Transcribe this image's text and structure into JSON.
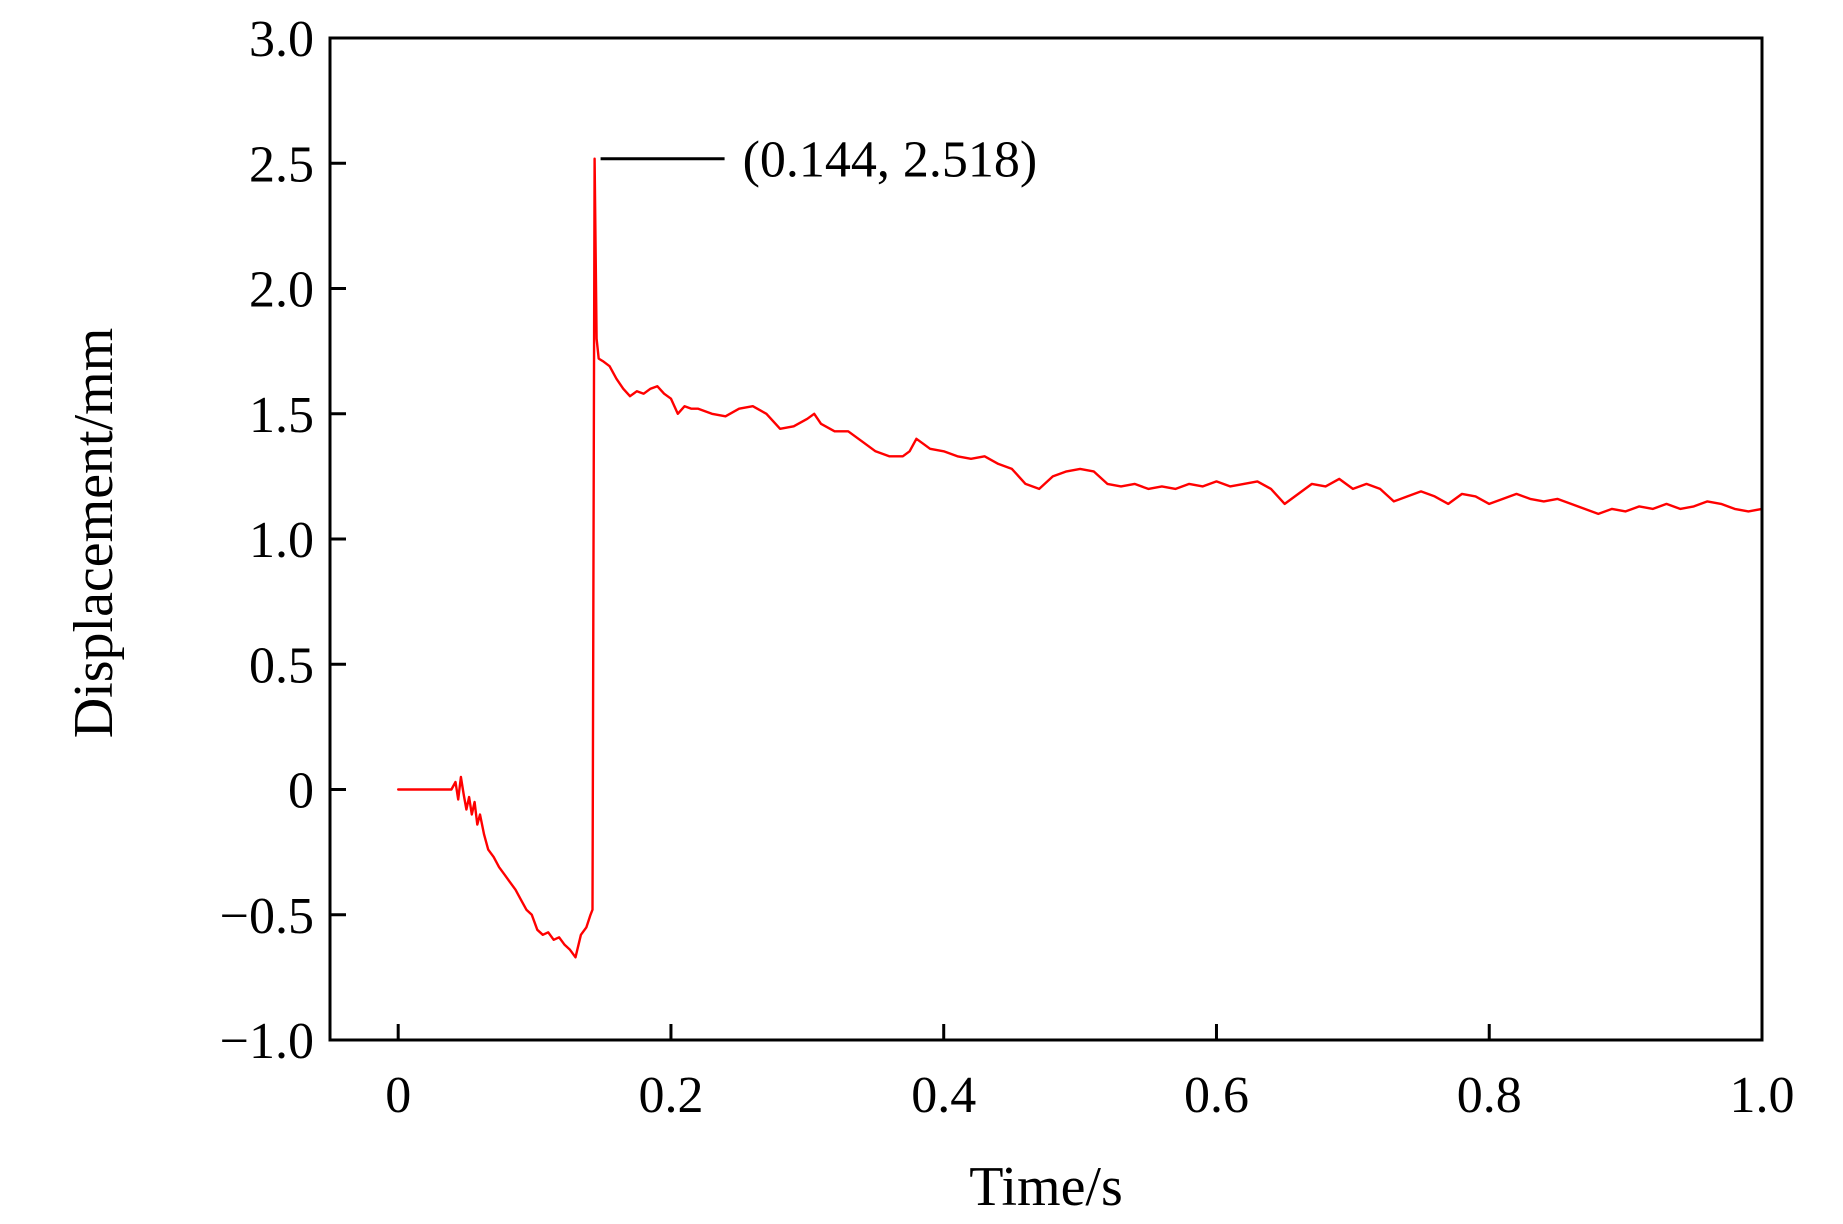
{
  "chart_data": {
    "type": "line",
    "xlabel": "Time/s",
    "ylabel": "Displacement/mm",
    "xlim": [
      -0.05,
      1.0
    ],
    "ylim": [
      -1.0,
      3.0
    ],
    "x_ticks": [
      0,
      0.2,
      0.4,
      0.6,
      0.8,
      1.0
    ],
    "x_tick_labels": [
      "0",
      "0.2",
      "0.4",
      "0.6",
      "0.8",
      "1.0"
    ],
    "y_ticks": [
      -1.0,
      -0.5,
      0,
      0.5,
      1.0,
      1.5,
      2.0,
      2.5,
      3.0
    ],
    "y_tick_labels": [
      "−1.0",
      "−0.5",
      "0",
      "0.5",
      "1.0",
      "1.5",
      "2.0",
      "2.5",
      "3.0"
    ],
    "grid": false,
    "series": [
      {
        "color": "#ff0000",
        "x": [
          0,
          0.01,
          0.02,
          0.03,
          0.039,
          0.042,
          0.044,
          0.046,
          0.048,
          0.05,
          0.052,
          0.054,
          0.056,
          0.058,
          0.06,
          0.063,
          0.066,
          0.07,
          0.074,
          0.078,
          0.082,
          0.086,
          0.09,
          0.094,
          0.098,
          0.102,
          0.106,
          0.11,
          0.114,
          0.118,
          0.122,
          0.126,
          0.13,
          0.134,
          0.138,
          0.141,
          0.1425,
          0.144,
          0.1455,
          0.147,
          0.15,
          0.155,
          0.16,
          0.165,
          0.17,
          0.175,
          0.18,
          0.185,
          0.19,
          0.195,
          0.2,
          0.205,
          0.21,
          0.215,
          0.22,
          0.23,
          0.24,
          0.25,
          0.26,
          0.27,
          0.28,
          0.29,
          0.3,
          0.305,
          0.31,
          0.32,
          0.33,
          0.34,
          0.35,
          0.36,
          0.37,
          0.375,
          0.38,
          0.385,
          0.39,
          0.4,
          0.41,
          0.42,
          0.43,
          0.44,
          0.45,
          0.46,
          0.47,
          0.48,
          0.49,
          0.5,
          0.51,
          0.52,
          0.53,
          0.54,
          0.55,
          0.56,
          0.57,
          0.58,
          0.59,
          0.6,
          0.61,
          0.62,
          0.63,
          0.64,
          0.65,
          0.66,
          0.67,
          0.68,
          0.69,
          0.7,
          0.71,
          0.72,
          0.73,
          0.74,
          0.75,
          0.76,
          0.77,
          0.78,
          0.79,
          0.8,
          0.81,
          0.82,
          0.83,
          0.84,
          0.85,
          0.86,
          0.87,
          0.88,
          0.89,
          0.9,
          0.91,
          0.92,
          0.93,
          0.94,
          0.95,
          0.96,
          0.97,
          0.98,
          0.99,
          1.0
        ],
        "y": [
          0,
          0,
          0,
          0,
          0,
          0.03,
          -0.04,
          0.05,
          -0.02,
          -0.08,
          -0.03,
          -0.1,
          -0.05,
          -0.14,
          -0.1,
          -0.18,
          -0.24,
          -0.27,
          -0.31,
          -0.34,
          -0.37,
          -0.4,
          -0.44,
          -0.48,
          -0.5,
          -0.56,
          -0.58,
          -0.57,
          -0.6,
          -0.59,
          -0.62,
          -0.64,
          -0.67,
          -0.58,
          -0.55,
          -0.5,
          -0.48,
          2.518,
          1.8,
          1.72,
          1.71,
          1.69,
          1.64,
          1.6,
          1.57,
          1.59,
          1.58,
          1.6,
          1.61,
          1.58,
          1.56,
          1.5,
          1.53,
          1.52,
          1.52,
          1.5,
          1.49,
          1.52,
          1.53,
          1.5,
          1.44,
          1.45,
          1.48,
          1.5,
          1.46,
          1.43,
          1.43,
          1.39,
          1.35,
          1.33,
          1.33,
          1.35,
          1.4,
          1.38,
          1.36,
          1.35,
          1.33,
          1.32,
          1.33,
          1.3,
          1.28,
          1.22,
          1.2,
          1.25,
          1.27,
          1.28,
          1.27,
          1.22,
          1.21,
          1.22,
          1.2,
          1.21,
          1.2,
          1.22,
          1.21,
          1.23,
          1.21,
          1.22,
          1.23,
          1.2,
          1.14,
          1.18,
          1.22,
          1.21,
          1.24,
          1.2,
          1.22,
          1.2,
          1.15,
          1.17,
          1.19,
          1.17,
          1.14,
          1.18,
          1.17,
          1.14,
          1.16,
          1.18,
          1.16,
          1.15,
          1.16,
          1.14,
          1.12,
          1.1,
          1.12,
          1.11,
          1.13,
          1.12,
          1.14,
          1.12,
          1.13,
          1.15,
          1.14,
          1.12,
          1.11,
          1.12
        ]
      }
    ],
    "annotations": [
      {
        "text": "(0.144, 2.518)",
        "x": 0.144,
        "y": 2.518
      }
    ]
  }
}
